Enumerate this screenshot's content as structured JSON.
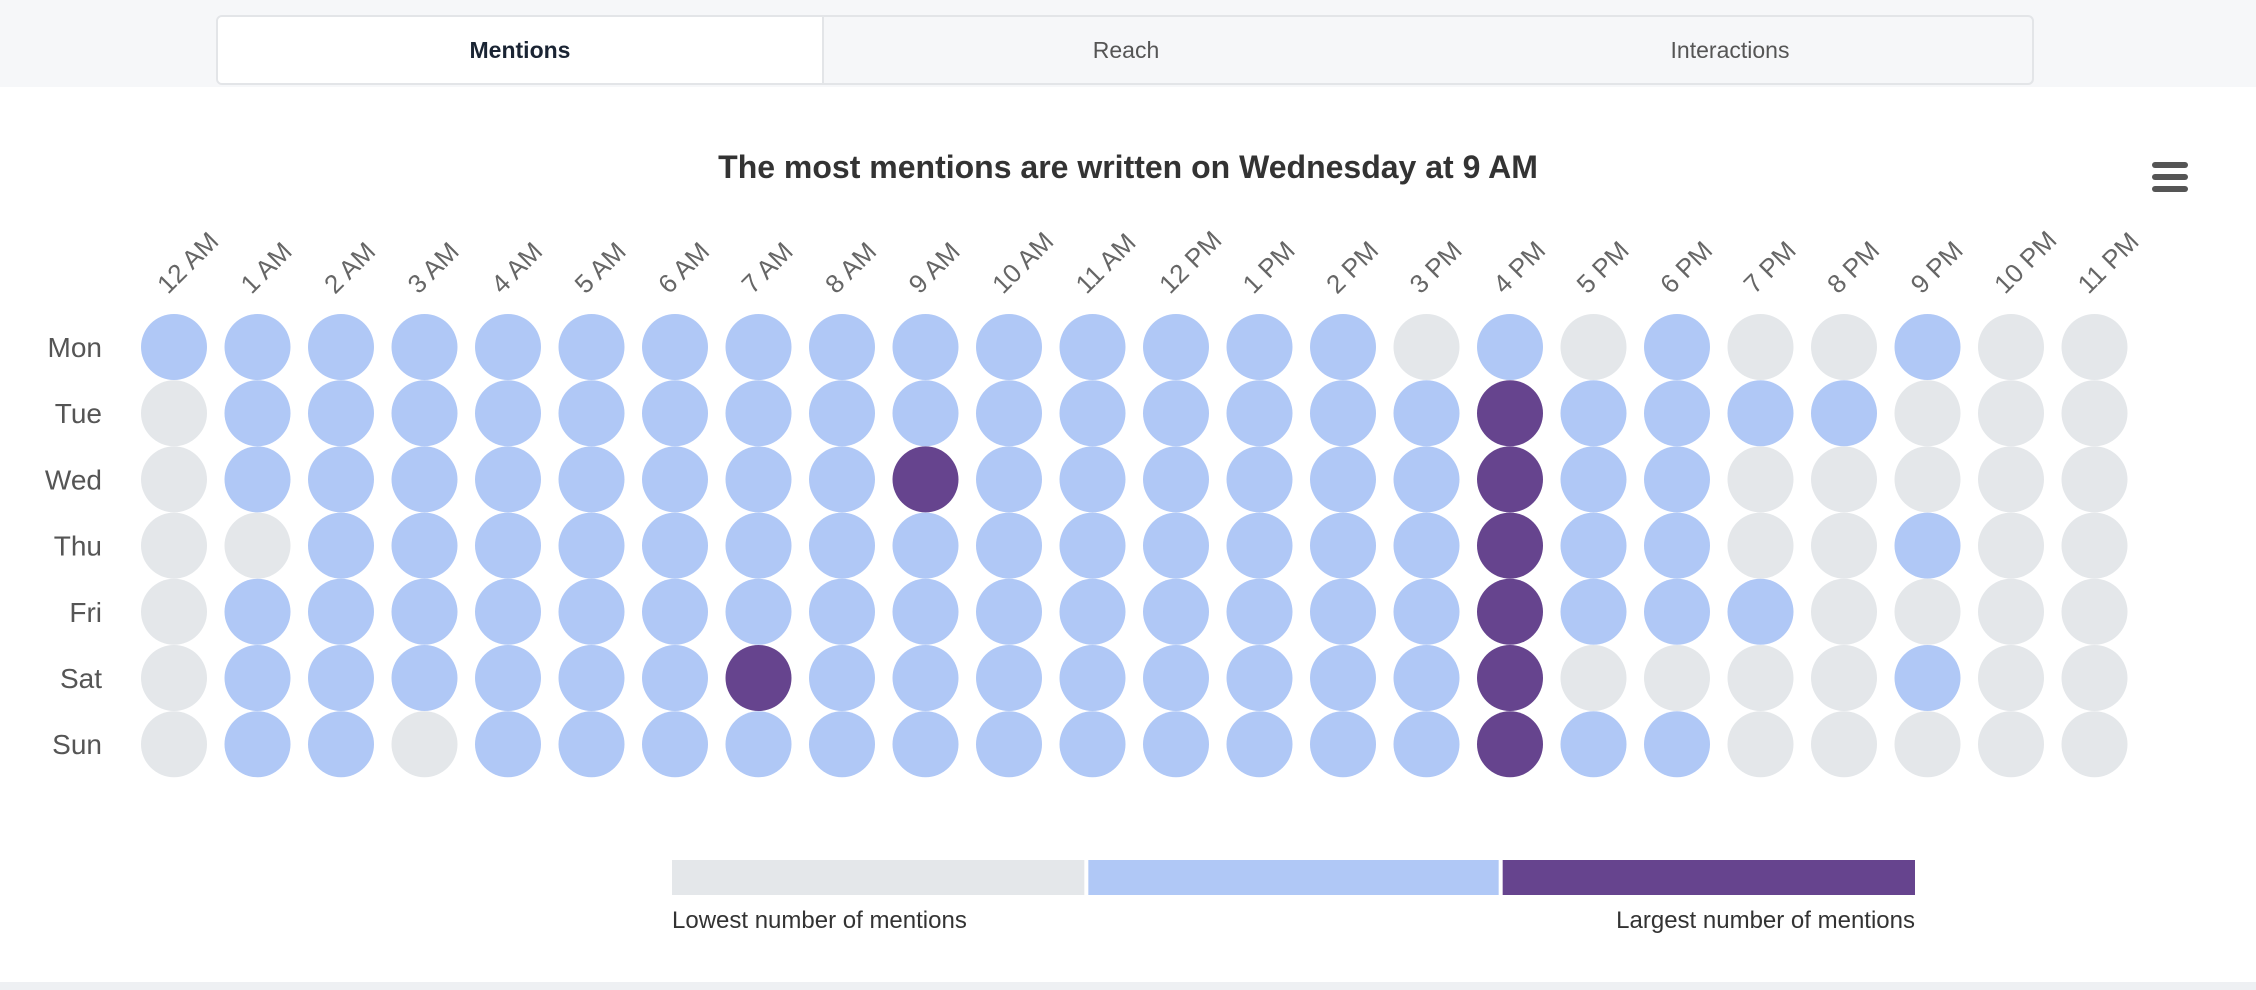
{
  "tabs": [
    {
      "label": "Mentions",
      "active": true
    },
    {
      "label": "Reach",
      "active": false
    },
    {
      "label": "Interactions",
      "active": false
    }
  ],
  "menu_icon": "hamburger-menu-icon",
  "chart_data": {
    "type": "heatmap",
    "title": "The most mentions are written on Wednesday at 9 AM",
    "x_categories": [
      "12 AM",
      "1 AM",
      "2 AM",
      "3 AM",
      "4 AM",
      "5 AM",
      "6 AM",
      "7 AM",
      "8 AM",
      "9 AM",
      "10 AM",
      "11 AM",
      "12 PM",
      "1 PM",
      "2 PM",
      "3 PM",
      "4 PM",
      "5 PM",
      "6 PM",
      "7 PM",
      "8 PM",
      "9 PM",
      "10 PM",
      "11 PM"
    ],
    "y_categories": [
      "Mon",
      "Tue",
      "Wed",
      "Thu",
      "Fri",
      "Sat",
      "Sun"
    ],
    "levels": [
      [
        1,
        1,
        1,
        1,
        1,
        1,
        1,
        1,
        1,
        1,
        1,
        1,
        1,
        1,
        1,
        0,
        1,
        0,
        1,
        0,
        0,
        1,
        0,
        0
      ],
      [
        0,
        1,
        1,
        1,
        1,
        1,
        1,
        1,
        1,
        1,
        1,
        1,
        1,
        1,
        1,
        1,
        2,
        1,
        1,
        1,
        1,
        0,
        0,
        0
      ],
      [
        0,
        1,
        1,
        1,
        1,
        1,
        1,
        1,
        1,
        2,
        1,
        1,
        1,
        1,
        1,
        1,
        2,
        1,
        1,
        0,
        0,
        0,
        0,
        0
      ],
      [
        0,
        0,
        1,
        1,
        1,
        1,
        1,
        1,
        1,
        1,
        1,
        1,
        1,
        1,
        1,
        1,
        2,
        1,
        1,
        0,
        0,
        1,
        0,
        0
      ],
      [
        0,
        1,
        1,
        1,
        1,
        1,
        1,
        1,
        1,
        1,
        1,
        1,
        1,
        1,
        1,
        1,
        2,
        1,
        1,
        1,
        0,
        0,
        0,
        0
      ],
      [
        0,
        1,
        1,
        1,
        1,
        1,
        1,
        2,
        1,
        1,
        1,
        1,
        1,
        1,
        1,
        1,
        2,
        0,
        0,
        0,
        0,
        1,
        0,
        0
      ],
      [
        0,
        1,
        1,
        0,
        1,
        1,
        1,
        1,
        1,
        1,
        1,
        1,
        1,
        1,
        1,
        1,
        2,
        1,
        1,
        0,
        0,
        0,
        0,
        0
      ]
    ],
    "colors": [
      "#e4e7ea",
      "#b0c8f6",
      "#66448e"
    ],
    "legend": {
      "low_label": "Lowest number of mentions",
      "high_label": "Largest number of mentions"
    }
  }
}
